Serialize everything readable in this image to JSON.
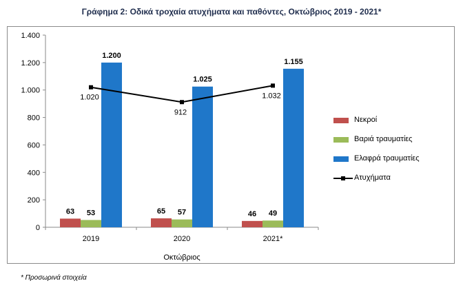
{
  "chart_data": {
    "type": "bar",
    "title": "Γράφημα 2: Οδικά τροχαία ατυχήματα και παθόντες, Οκτώβριος 2019 - 2021*",
    "xlabel": "Οκτώβριος",
    "ylabel": "",
    "categories": [
      "2019",
      "2020",
      "2021*"
    ],
    "ylim": [
      0,
      1400
    ],
    "yticks": [
      0,
      200,
      400,
      600,
      800,
      1000,
      1200,
      1400
    ],
    "ytick_labels": [
      "0",
      "200",
      "400",
      "600",
      "800",
      "1.000",
      "1.200",
      "1.400"
    ],
    "series": [
      {
        "name": "Νεκροί",
        "kind": "bar",
        "color": "#c0504d",
        "values": [
          63,
          65,
          46
        ],
        "labels": [
          "63",
          "65",
          "46"
        ]
      },
      {
        "name": "Βαριά τραυματίες",
        "kind": "bar",
        "color": "#9bbb59",
        "values": [
          53,
          57,
          49
        ],
        "labels": [
          "53",
          "57",
          "49"
        ]
      },
      {
        "name": "Ελαφρά τραυματίες",
        "kind": "bar",
        "color": "#1f77c9",
        "values": [
          1200,
          1025,
          1155
        ],
        "labels": [
          "1.200",
          "1.025",
          "1.155"
        ]
      },
      {
        "name": "Ατυχήματα",
        "kind": "line",
        "color": "#000000",
        "values": [
          1020,
          912,
          1032
        ],
        "labels": [
          "1.020",
          "912",
          "1.032"
        ]
      }
    ],
    "legend": "right",
    "grid": false
  },
  "footnote": "* Προσωρινά στοιχεία"
}
